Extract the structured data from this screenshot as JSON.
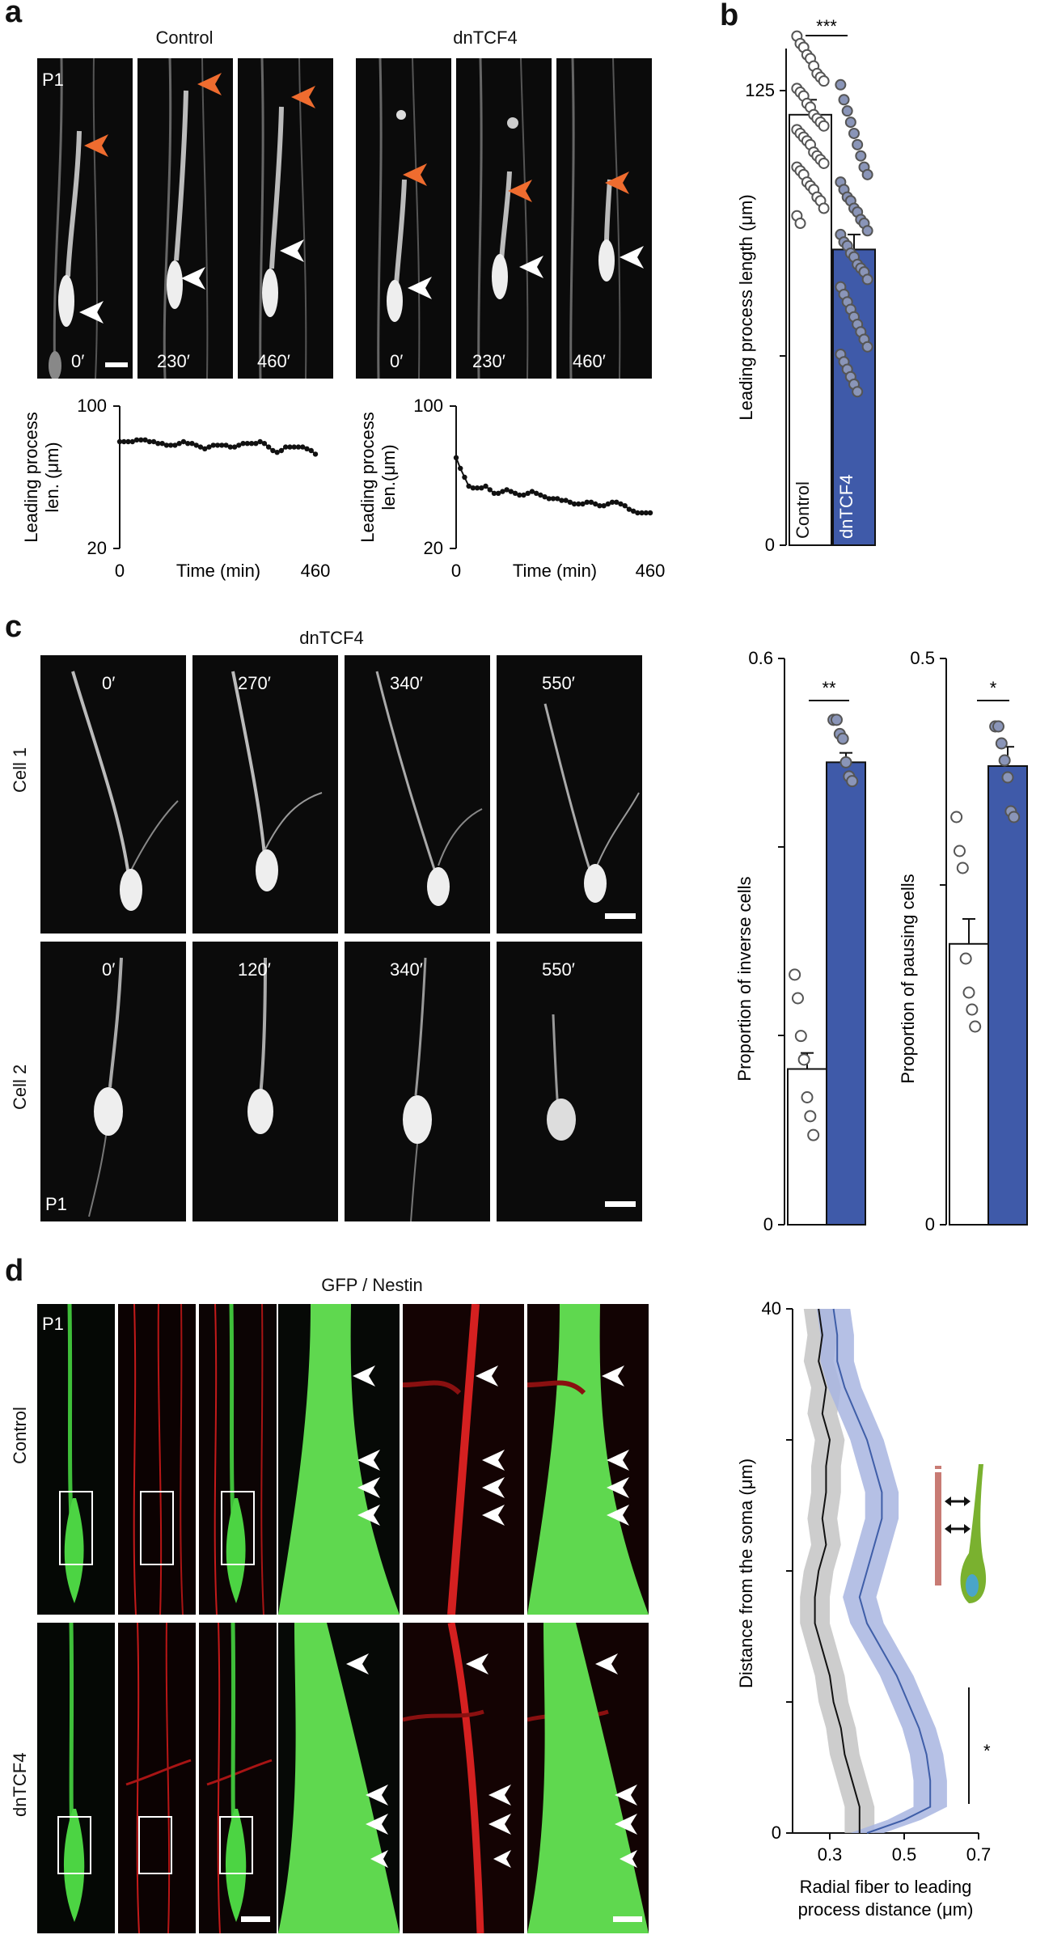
{
  "panels": {
    "a": {
      "letter": "a",
      "groups": [
        {
          "title": "Control",
          "frames": [
            "0′",
            "230′",
            "460′"
          ],
          "stage": "P1"
        },
        {
          "title": "dnTCF4",
          "frames": [
            "0′",
            "230′",
            "460′"
          ]
        }
      ],
      "traces": [
        {
          "y_label_1": "Leading process",
          "y_label_2": "len. (μm)",
          "y_top": "100",
          "y_bottom": "20",
          "x_left": "0",
          "x_right": "460",
          "x_label": "Time (min)"
        },
        {
          "y_label_1": "Leading process",
          "y_label_2": "len.(μm)",
          "y_top": "100",
          "y_bottom": "20",
          "x_left": "0",
          "x_right": "460",
          "x_label": "Time (min)"
        }
      ]
    },
    "b": {
      "letter": "b",
      "ylabel": "Leading process length (μm)",
      "ticks": [
        "125",
        "0"
      ],
      "sig": "***",
      "bars": [
        "Control",
        "dnTCF4"
      ]
    },
    "c": {
      "letter": "c",
      "title": "dnTCF4",
      "rows": [
        {
          "label": "Cell 1",
          "frames": [
            "0′",
            "270′",
            "340′",
            "550′"
          ]
        },
        {
          "label": "Cell 2",
          "frames": [
            "0′",
            "120′",
            "340′",
            "550′"
          ],
          "stage": "P1"
        }
      ],
      "inverse": {
        "ylabel": "Proportion of inverse cells",
        "top": "0.6",
        "zero": "0",
        "sig": "**"
      },
      "pausing": {
        "ylabel": "Proportion of pausing cells",
        "top": "0.5",
        "zero": "0",
        "sig": "*"
      }
    },
    "d": {
      "letter": "d",
      "title": "GFP / Nestin",
      "stage": "P1",
      "rows": [
        "Control",
        "dnTCF4"
      ],
      "plot": {
        "ylabel": "Distance from the soma (μm)",
        "xlabel_1": "Radial fiber to leading",
        "xlabel_2": "process distance (μm)",
        "y_top": "40",
        "y_bottom": "0",
        "x_ticks": [
          "0.3",
          "0.5",
          "0.7"
        ],
        "sig": "*"
      }
    }
  },
  "chart_data": [
    {
      "type": "line",
      "title": "Control",
      "xlabel": "Time (min)",
      "ylabel": "Leading process len. (μm)",
      "xlim": [
        0,
        460
      ],
      "ylim": [
        20,
        100
      ],
      "x": [
        0,
        10,
        20,
        30,
        40,
        50,
        60,
        70,
        80,
        90,
        100,
        110,
        120,
        130,
        140,
        150,
        160,
        170,
        180,
        190,
        200,
        210,
        220,
        230,
        240,
        250,
        260,
        270,
        280,
        290,
        300,
        310,
        320,
        330,
        340,
        350,
        360,
        370,
        380,
        390,
        400,
        410,
        420,
        430,
        440,
        450,
        460
      ],
      "values": [
        80,
        80,
        80,
        80,
        81,
        81,
        81,
        80,
        80,
        79,
        79,
        78,
        78,
        78,
        79,
        80,
        79,
        79,
        78,
        77,
        76,
        77,
        78,
        78,
        78,
        78,
        77,
        77,
        78,
        79,
        79,
        79,
        79,
        80,
        79,
        77,
        75,
        74,
        75,
        77,
        77,
        77,
        77,
        77,
        76,
        75,
        73
      ]
    },
    {
      "type": "line",
      "title": "dnTCF4",
      "xlabel": "Time (min)",
      "ylabel": "Leading process len. (μm)",
      "xlim": [
        0,
        460
      ],
      "ylim": [
        20,
        100
      ],
      "x": [
        0,
        10,
        20,
        30,
        40,
        50,
        60,
        70,
        80,
        90,
        100,
        110,
        120,
        130,
        140,
        150,
        160,
        170,
        180,
        190,
        200,
        210,
        220,
        230,
        240,
        250,
        260,
        270,
        280,
        290,
        300,
        310,
        320,
        330,
        340,
        350,
        360,
        370,
        380,
        390,
        400,
        410,
        420,
        430,
        440,
        450,
        460
      ],
      "values": [
        71,
        65,
        60,
        55,
        54,
        54,
        54,
        55,
        53,
        51,
        51,
        52,
        53,
        52,
        51,
        50,
        50,
        51,
        52,
        51,
        50,
        49,
        48,
        48,
        48,
        47,
        47,
        46,
        45,
        45,
        45,
        46,
        46,
        45,
        44,
        44,
        45,
        46,
        46,
        45,
        44,
        42,
        41,
        40,
        40,
        40,
        40
      ]
    },
    {
      "type": "bar",
      "categories": [
        "Control",
        "dnTCF4"
      ],
      "values": [
        115,
        79
      ],
      "errors": [
        4,
        4
      ],
      "ylabel": "Leading process length (μm)",
      "ylim": [
        0,
        137
      ],
      "points": {
        "Control": [
          136,
          134,
          133,
          131,
          130,
          128,
          126,
          125,
          124,
          122,
          121,
          120,
          118,
          117,
          115,
          114,
          113,
          112,
          111,
          110,
          109,
          108,
          107,
          105,
          104,
          103,
          102,
          101,
          100,
          99,
          97,
          96,
          95,
          93,
          92,
          90,
          88,
          86
        ],
        "dnTCF4": [
          123,
          119,
          116,
          113,
          110,
          107,
          104,
          101,
          99,
          97,
          95,
          93,
          92,
          90,
          89,
          87,
          86,
          84,
          83,
          81,
          80,
          78,
          77,
          75,
          74,
          73,
          71,
          69,
          67,
          65,
          63,
          61,
          59,
          57,
          55,
          53,
          51,
          49,
          47,
          45,
          43,
          41
        ]
      },
      "significance": "***"
    },
    {
      "type": "bar",
      "categories": [
        "Control",
        "dnTCF4"
      ],
      "values": [
        0.165,
        0.49
      ],
      "errors": [
        0.017,
        0.01
      ],
      "ylabel": "Proportion of inverse cells",
      "ylim": [
        0,
        0.6
      ],
      "points": {
        "Control": [
          0.265,
          0.24,
          0.2,
          0.175,
          0.135,
          0.115,
          0.095
        ],
        "dnTCF4": [
          0.535,
          0.535,
          0.52,
          0.515,
          0.49,
          0.475,
          0.47
        ]
      },
      "significance": "**"
    },
    {
      "type": "bar",
      "categories": [
        "Control",
        "dnTCF4"
      ],
      "values": [
        0.248,
        0.405
      ],
      "errors": [
        0.022,
        0.017
      ],
      "ylabel": "Proportion of pausing cells",
      "ylim": [
        0,
        0.5
      ],
      "points": {
        "Control": [
          0.36,
          0.33,
          0.315,
          0.235,
          0.205,
          0.19,
          0.175
        ],
        "dnTCF4": [
          0.44,
          0.44,
          0.425,
          0.41,
          0.395,
          0.365,
          0.36
        ]
      },
      "significance": "*"
    },
    {
      "type": "line",
      "xlabel": "Radial fiber to leading process distance (μm)",
      "ylabel": "Distance from the soma (μm)",
      "xlim": [
        0.2,
        0.7
      ],
      "ylim": [
        0,
        40
      ],
      "series": [
        {
          "color": "#111111",
          "band_color": "#c4c4c4",
          "band_halfwidth": 0.04,
          "y": [
            40,
            38,
            36,
            34,
            32,
            30,
            28,
            26,
            24,
            22,
            20,
            18,
            16,
            14,
            12,
            10,
            8,
            6,
            4,
            2,
            1,
            0
          ],
          "x": [
            0.27,
            0.28,
            0.27,
            0.29,
            0.28,
            0.3,
            0.29,
            0.29,
            0.28,
            0.29,
            0.27,
            0.26,
            0.26,
            0.28,
            0.3,
            0.31,
            0.33,
            0.34,
            0.36,
            0.38,
            0.38,
            0.38
          ]
        },
        {
          "color": "#3f5ea8",
          "band_color": "#a8b5e0",
          "band_halfwidth": 0.045,
          "y": [
            40,
            38,
            36,
            34,
            32,
            30,
            28,
            26,
            24,
            22,
            20,
            18,
            16,
            14,
            12,
            10,
            8,
            6,
            4,
            2,
            1,
            0
          ],
          "x": [
            0.31,
            0.32,
            0.32,
            0.34,
            0.37,
            0.4,
            0.42,
            0.44,
            0.44,
            0.42,
            0.4,
            0.38,
            0.4,
            0.44,
            0.48,
            0.51,
            0.54,
            0.56,
            0.57,
            0.57,
            0.5,
            0.4
          ]
        }
      ],
      "significance": "*"
    }
  ]
}
